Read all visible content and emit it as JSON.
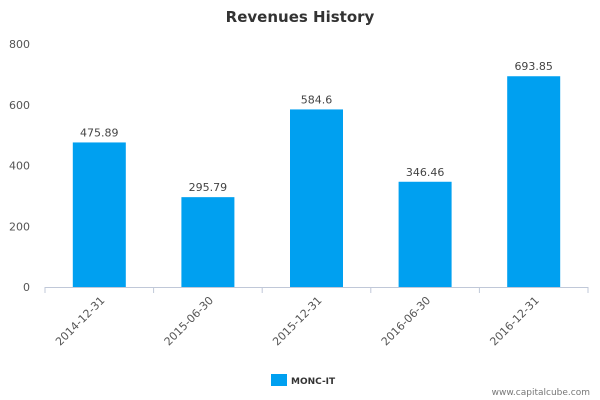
{
  "chart_data": {
    "type": "bar",
    "title": "Revenues History",
    "xlabel": "",
    "ylabel": "",
    "categories": [
      "2014-12-31",
      "2015-06-30",
      "2015-12-31",
      "2016-06-30",
      "2016-12-31"
    ],
    "series": [
      {
        "name": "MONC-IT",
        "values": [
          475.89,
          295.79,
          584.6,
          346.46,
          693.85
        ],
        "color": "#00a0f0"
      }
    ],
    "data_labels": [
      "475.89",
      "295.79",
      "584.6",
      "346.46",
      "693.85"
    ],
    "ylim": [
      0,
      800
    ],
    "yticks": [
      0,
      200,
      400,
      600,
      800
    ],
    "grid": false,
    "legend_position": "bottom-center"
  },
  "source_text": "www.capitalcube.com"
}
